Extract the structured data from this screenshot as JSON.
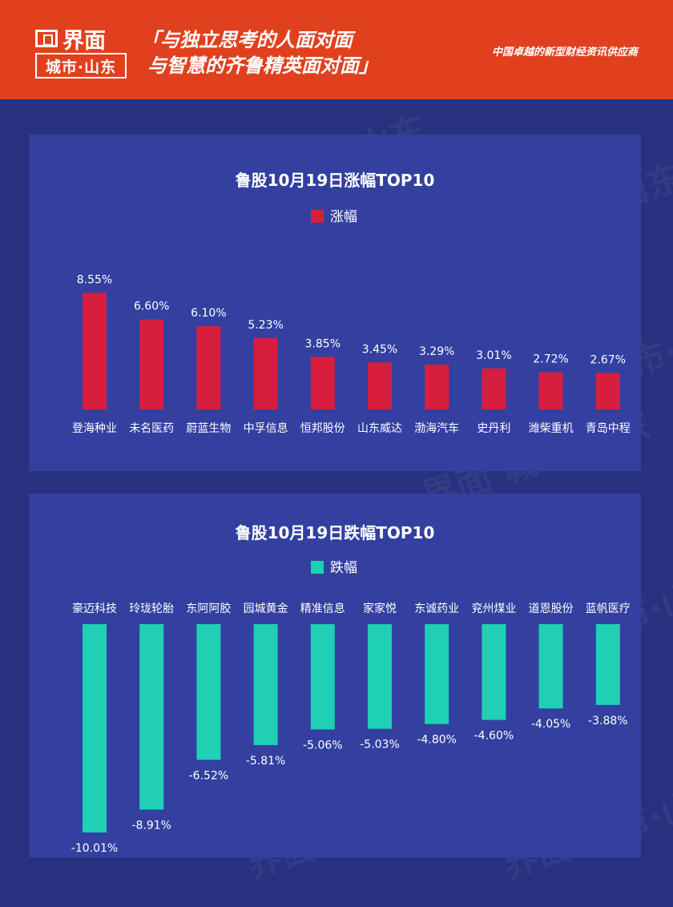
{
  "header": {
    "logo_name": "界面",
    "logo_sub": "城市·山东",
    "slogan_line1": "「与独立思考的人面对面",
    "slogan_line2": "与智慧的齐鲁精英面对面」",
    "tagline": "中国卓越的新型财经资讯供应商",
    "bg_color": "#e1401e"
  },
  "watermark_text": "界面 城市·山东",
  "chart_data": [
    {
      "type": "bar",
      "title": "鲁股10月19日涨幅TOP10",
      "categories": [
        "登海种业",
        "未名医药",
        "蔚蓝生物",
        "中孚信息",
        "恒邦股份",
        "山东威达",
        "渤海汽车",
        "史丹利",
        "潍柴重机",
        "青岛中程"
      ],
      "series": [
        {
          "name": "涨幅",
          "values": [
            8.55,
            6.6,
            6.1,
            5.23,
            3.85,
            3.45,
            3.29,
            3.01,
            2.72,
            2.67
          ],
          "labels": [
            "8.55%",
            "6.60%",
            "6.10%",
            "5.23%",
            "3.85%",
            "3.45%",
            "3.29%",
            "3.01%",
            "2.72%",
            "2.67%"
          ],
          "color": "#d81e3f"
        }
      ],
      "ylim": [
        0,
        10
      ],
      "grid": false,
      "legend": "top-center"
    },
    {
      "type": "bar",
      "title": "鲁股10月19日跌幅TOP10",
      "categories": [
        "豪迈科技",
        "玲珑轮胎",
        "东阿阿胶",
        "园城黄金",
        "精准信息",
        "家家悦",
        "东诚药业",
        "兖州煤业",
        "道恩股份",
        "蓝帆医疗"
      ],
      "series": [
        {
          "name": "跌幅",
          "values": [
            -10.01,
            -8.91,
            -6.52,
            -5.81,
            -5.06,
            -5.03,
            -4.8,
            -4.6,
            -4.05,
            -3.88
          ],
          "labels": [
            "-10.01%",
            "-8.91%",
            "-6.52%",
            "-5.81%",
            "-5.06%",
            "-5.03%",
            "-4.80%",
            "-4.60%",
            "-4.05%",
            "-3.88%"
          ],
          "color": "#1fd0b4"
        }
      ],
      "ylim": [
        -10.01,
        0
      ],
      "grid": false,
      "legend": "top-center"
    }
  ]
}
